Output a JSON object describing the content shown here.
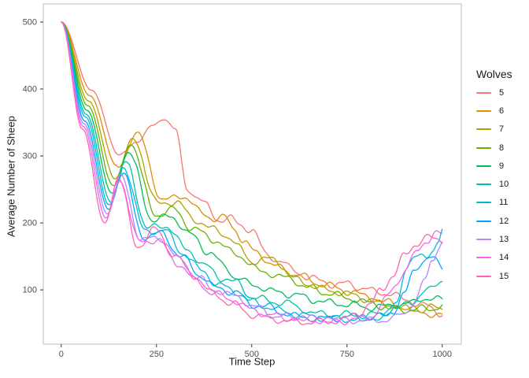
{
  "figure": {
    "xlabel": "Time Step",
    "ylabel": "Average Number of Sheep",
    "legend_title": "Wolves"
  },
  "chart_data": {
    "type": "line",
    "title": "",
    "xlabel": "Time Step",
    "ylabel": "Average Number of Sheep",
    "legend_title": "Wolves",
    "legend_position": "right",
    "grid": false,
    "background": "#FFFFFF",
    "panel_border_color": "#C9C9C9",
    "tick_color": "#333333",
    "axis_text_color": "#4D4D4D",
    "axis_title_color": "#1A1A1A",
    "xlim": [
      -47,
      1050
    ],
    "ylim": [
      19,
      527
    ],
    "x_ticks": [
      0,
      250,
      500,
      750,
      1000
    ],
    "y_ticks": [
      100,
      200,
      300,
      400,
      500
    ],
    "series": [
      {
        "name": "5",
        "wolves": 5,
        "color": "#F8766D",
        "points": [
          [
            0,
            500
          ],
          [
            80,
            398
          ],
          [
            153,
            301
          ],
          [
            200,
            322
          ],
          [
            240,
            345
          ],
          [
            270,
            356
          ],
          [
            300,
            340
          ],
          [
            330,
            252
          ],
          [
            355,
            240
          ],
          [
            380,
            226
          ],
          [
            410,
            205
          ],
          [
            445,
            207
          ],
          [
            470,
            196
          ],
          [
            500,
            190
          ],
          [
            540,
            152
          ],
          [
            575,
            143
          ],
          [
            610,
            129
          ],
          [
            650,
            118
          ],
          [
            680,
            114
          ],
          [
            720,
            107
          ],
          [
            755,
            110
          ],
          [
            790,
            102
          ],
          [
            830,
            97
          ],
          [
            865,
            94
          ],
          [
            900,
            86
          ],
          [
            950,
            77
          ],
          [
            1000,
            65
          ]
        ]
      },
      {
        "name": "6",
        "wolves": 6,
        "color": "#DB8E00",
        "points": [
          [
            0,
            500
          ],
          [
            75,
            390
          ],
          [
            148,
            283
          ],
          [
            200,
            334
          ],
          [
            268,
            232
          ],
          [
            310,
            242
          ],
          [
            372,
            216
          ],
          [
            405,
            204
          ],
          [
            432,
            208
          ],
          [
            455,
            192
          ],
          [
            480,
            170
          ],
          [
            510,
            157
          ],
          [
            562,
            135
          ],
          [
            618,
            123
          ],
          [
            680,
            109
          ],
          [
            762,
            97
          ],
          [
            800,
            90
          ],
          [
            850,
            82
          ],
          [
            900,
            74
          ],
          [
            950,
            66
          ],
          [
            1000,
            61
          ]
        ]
      },
      {
        "name": "7",
        "wolves": 7,
        "color": "#AEA200",
        "points": [
          [
            0,
            500
          ],
          [
            72,
            382
          ],
          [
            142,
            268
          ],
          [
            188,
            325
          ],
          [
            255,
            228
          ],
          [
            300,
            232
          ],
          [
            350,
            205
          ],
          [
            400,
            190
          ],
          [
            440,
            180
          ],
          [
            465,
            163
          ],
          [
            500,
            143
          ],
          [
            556,
            146
          ],
          [
            618,
            115
          ],
          [
            686,
            101
          ],
          [
            762,
            93
          ],
          [
            810,
            85
          ],
          [
            855,
            77
          ],
          [
            900,
            72
          ],
          [
            950,
            70
          ],
          [
            975,
            74
          ],
          [
            1000,
            72
          ]
        ]
      },
      {
        "name": "8",
        "wolves": 8,
        "color": "#64B200",
        "points": [
          [
            0,
            500
          ],
          [
            70,
            375
          ],
          [
            138,
            255
          ],
          [
            182,
            318
          ],
          [
            248,
            212
          ],
          [
            292,
            220
          ],
          [
            345,
            192
          ],
          [
            400,
            175
          ],
          [
            459,
            153
          ],
          [
            527,
            127
          ],
          [
            597,
            117
          ],
          [
            651,
            103
          ],
          [
            700,
            95
          ],
          [
            762,
            87
          ],
          [
            810,
            80
          ],
          [
            850,
            75
          ],
          [
            900,
            70
          ],
          [
            940,
            72
          ],
          [
            970,
            71
          ],
          [
            1000,
            78
          ]
        ]
      },
      {
        "name": "9",
        "wolves": 9,
        "color": "#00BD5C",
        "points": [
          [
            0,
            500
          ],
          [
            68,
            368
          ],
          [
            134,
            243
          ],
          [
            176,
            305
          ],
          [
            242,
            204
          ],
          [
            288,
            210
          ],
          [
            340,
            182
          ],
          [
            390,
            155
          ],
          [
            430,
            135
          ],
          [
            459,
            118
          ],
          [
            500,
            108
          ],
          [
            562,
            97
          ],
          [
            618,
            92
          ],
          [
            665,
            85
          ],
          [
            700,
            81
          ],
          [
            762,
            78
          ],
          [
            800,
            74
          ],
          [
            850,
            75
          ],
          [
            880,
            78
          ],
          [
            920,
            80
          ],
          [
            950,
            88
          ],
          [
            1000,
            85
          ]
        ]
      },
      {
        "name": "10",
        "wolves": 10,
        "color": "#00C1A7",
        "points": [
          [
            0,
            500
          ],
          [
            66,
            362
          ],
          [
            130,
            233
          ],
          [
            169,
            291
          ],
          [
            227,
            192
          ],
          [
            275,
            196
          ],
          [
            330,
            160
          ],
          [
            380,
            135
          ],
          [
            420,
            118
          ],
          [
            459,
            111
          ],
          [
            500,
            90
          ],
          [
            527,
            86
          ],
          [
            560,
            82
          ],
          [
            597,
            80
          ],
          [
            630,
            72
          ],
          [
            666,
            64
          ],
          [
            700,
            65
          ],
          [
            730,
            62
          ],
          [
            762,
            64
          ],
          [
            800,
            61
          ],
          [
            840,
            65
          ],
          [
            880,
            72
          ],
          [
            920,
            83
          ],
          [
            960,
            98
          ],
          [
            1000,
            115
          ]
        ]
      },
      {
        "name": "11",
        "wolves": 11,
        "color": "#00BADE",
        "points": [
          [
            0,
            500
          ],
          [
            64,
            358
          ],
          [
            127,
            226
          ],
          [
            165,
            283
          ],
          [
            221,
            186
          ],
          [
            268,
            190
          ],
          [
            320,
            155
          ],
          [
            370,
            128
          ],
          [
            410,
            108
          ],
          [
            459,
            97
          ],
          [
            500,
            82
          ],
          [
            540,
            75
          ],
          [
            580,
            68
          ],
          [
            620,
            63
          ],
          [
            660,
            60
          ],
          [
            700,
            58
          ],
          [
            740,
            56
          ],
          [
            780,
            57
          ],
          [
            820,
            58
          ],
          [
            850,
            62
          ],
          [
            880,
            80
          ],
          [
            905,
            135
          ],
          [
            930,
            148
          ],
          [
            955,
            150
          ],
          [
            975,
            160
          ],
          [
            990,
            172
          ],
          [
            1000,
            188
          ]
        ]
      },
      {
        "name": "12",
        "wolves": 12,
        "color": "#00A6FF",
        "points": [
          [
            0,
            500
          ],
          [
            62,
            352
          ],
          [
            124,
            220
          ],
          [
            161,
            276
          ],
          [
            215,
            180
          ],
          [
            262,
            184
          ],
          [
            315,
            150
          ],
          [
            365,
            122
          ],
          [
            405,
            103
          ],
          [
            459,
            96
          ],
          [
            500,
            78
          ],
          [
            541,
            75
          ],
          [
            580,
            66
          ],
          [
            631,
            59
          ],
          [
            680,
            57
          ],
          [
            720,
            58
          ],
          [
            762,
            60
          ],
          [
            800,
            57
          ],
          [
            840,
            60
          ],
          [
            870,
            68
          ],
          [
            900,
            92
          ],
          [
            925,
            128
          ],
          [
            950,
            145
          ],
          [
            975,
            147
          ],
          [
            1000,
            133
          ]
        ]
      },
      {
        "name": "13",
        "wolves": 13,
        "color": "#B385FF",
        "points": [
          [
            0,
            500
          ],
          [
            60,
            348
          ],
          [
            121,
            214
          ],
          [
            157,
            269
          ],
          [
            211,
            174
          ],
          [
            258,
            178
          ],
          [
            310,
            145
          ],
          [
            360,
            118
          ],
          [
            400,
            100
          ],
          [
            459,
            90
          ],
          [
            510,
            74
          ],
          [
            562,
            61
          ],
          [
            610,
            59
          ],
          [
            666,
            57
          ],
          [
            710,
            55
          ],
          [
            762,
            55
          ],
          [
            800,
            54
          ],
          [
            840,
            55
          ],
          [
            870,
            57
          ],
          [
            900,
            65
          ],
          [
            930,
            85
          ],
          [
            955,
            115
          ],
          [
            975,
            145
          ],
          [
            990,
            165
          ],
          [
            1000,
            172
          ]
        ]
      },
      {
        "name": "14",
        "wolves": 14,
        "color": "#EF67EB",
        "points": [
          [
            0,
            500
          ],
          [
            58,
            344
          ],
          [
            118,
            207
          ],
          [
            154,
            264
          ],
          [
            205,
            171
          ],
          [
            252,
            175
          ],
          [
            305,
            140
          ],
          [
            355,
            113
          ],
          [
            395,
            96
          ],
          [
            450,
            85
          ],
          [
            500,
            70
          ],
          [
            550,
            62
          ],
          [
            600,
            57
          ],
          [
            650,
            55
          ],
          [
            700,
            54
          ],
          [
            750,
            54
          ],
          [
            790,
            57
          ],
          [
            820,
            62
          ],
          [
            850,
            85
          ],
          [
            880,
            110
          ],
          [
            905,
            132
          ],
          [
            935,
            158
          ],
          [
            960,
            175
          ],
          [
            985,
            185
          ],
          [
            1000,
            182
          ]
        ]
      },
      {
        "name": "15",
        "wolves": 15,
        "color": "#FF63B6",
        "points": [
          [
            0,
            500
          ],
          [
            56,
            340
          ],
          [
            114,
            199
          ],
          [
            150,
            268
          ],
          [
            200,
            165
          ],
          [
            246,
            190
          ],
          [
            300,
            150
          ],
          [
            350,
            121
          ],
          [
            395,
            95
          ],
          [
            450,
            79
          ],
          [
            500,
            63
          ],
          [
            550,
            57
          ],
          [
            600,
            53
          ],
          [
            650,
            52
          ],
          [
            700,
            53
          ],
          [
            740,
            56
          ],
          [
            780,
            65
          ],
          [
            810,
            78
          ],
          [
            840,
            100
          ],
          [
            870,
            121
          ],
          [
            900,
            150
          ],
          [
            930,
            168
          ],
          [
            955,
            178
          ],
          [
            980,
            176
          ],
          [
            1000,
            174
          ]
        ]
      }
    ]
  }
}
